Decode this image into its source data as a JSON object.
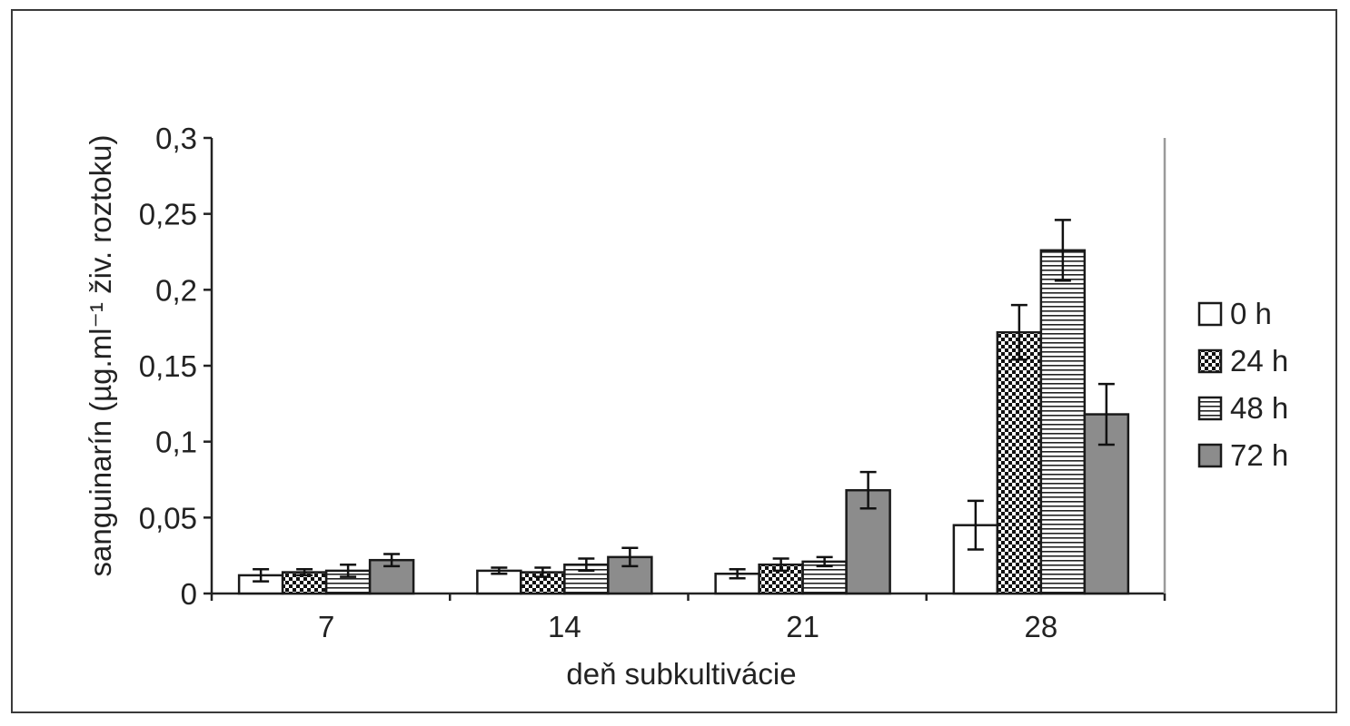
{
  "chart_data": {
    "type": "bar",
    "categories": [
      "7",
      "14",
      "21",
      "28"
    ],
    "series": [
      {
        "name": "0 h",
        "pattern": "none",
        "values": [
          0.012,
          0.015,
          0.013,
          0.045
        ],
        "errors": [
          0.004,
          0.002,
          0.003,
          0.016
        ]
      },
      {
        "name": "24 h",
        "pattern": "checker",
        "values": [
          0.014,
          0.014,
          0.019,
          0.172
        ],
        "errors": [
          0.002,
          0.003,
          0.004,
          0.018
        ]
      },
      {
        "name": "48 h",
        "pattern": "horizontal",
        "values": [
          0.015,
          0.019,
          0.021,
          0.226
        ],
        "errors": [
          0.004,
          0.004,
          0.003,
          0.02
        ]
      },
      {
        "name": "72 h",
        "pattern": "solid",
        "values": [
          0.022,
          0.024,
          0.068,
          0.118
        ],
        "errors": [
          0.004,
          0.006,
          0.012,
          0.02
        ]
      }
    ],
    "title": "",
    "xlabel": "deň subkultivácie",
    "ylabel": "sanguinarín (µg.ml⁻¹ živ. roztoku)",
    "ylim": [
      0,
      0.3
    ],
    "yticks": [
      {
        "v": 0,
        "label": "0"
      },
      {
        "v": 0.05,
        "label": "0,05"
      },
      {
        "v": 0.1,
        "label": "0,1"
      },
      {
        "v": 0.15,
        "label": "0,15"
      },
      {
        "v": 0.2,
        "label": "0,2"
      },
      {
        "v": 0.25,
        "label": "0,25"
      },
      {
        "v": 0.3,
        "label": "0,3"
      }
    ],
    "grid": false,
    "legend": "right",
    "colors": {
      "axis": "#222222",
      "bar_edge": "#1a1a1a",
      "solid_fill": "#8c8c8c",
      "pattern_ink": "#111111"
    }
  }
}
